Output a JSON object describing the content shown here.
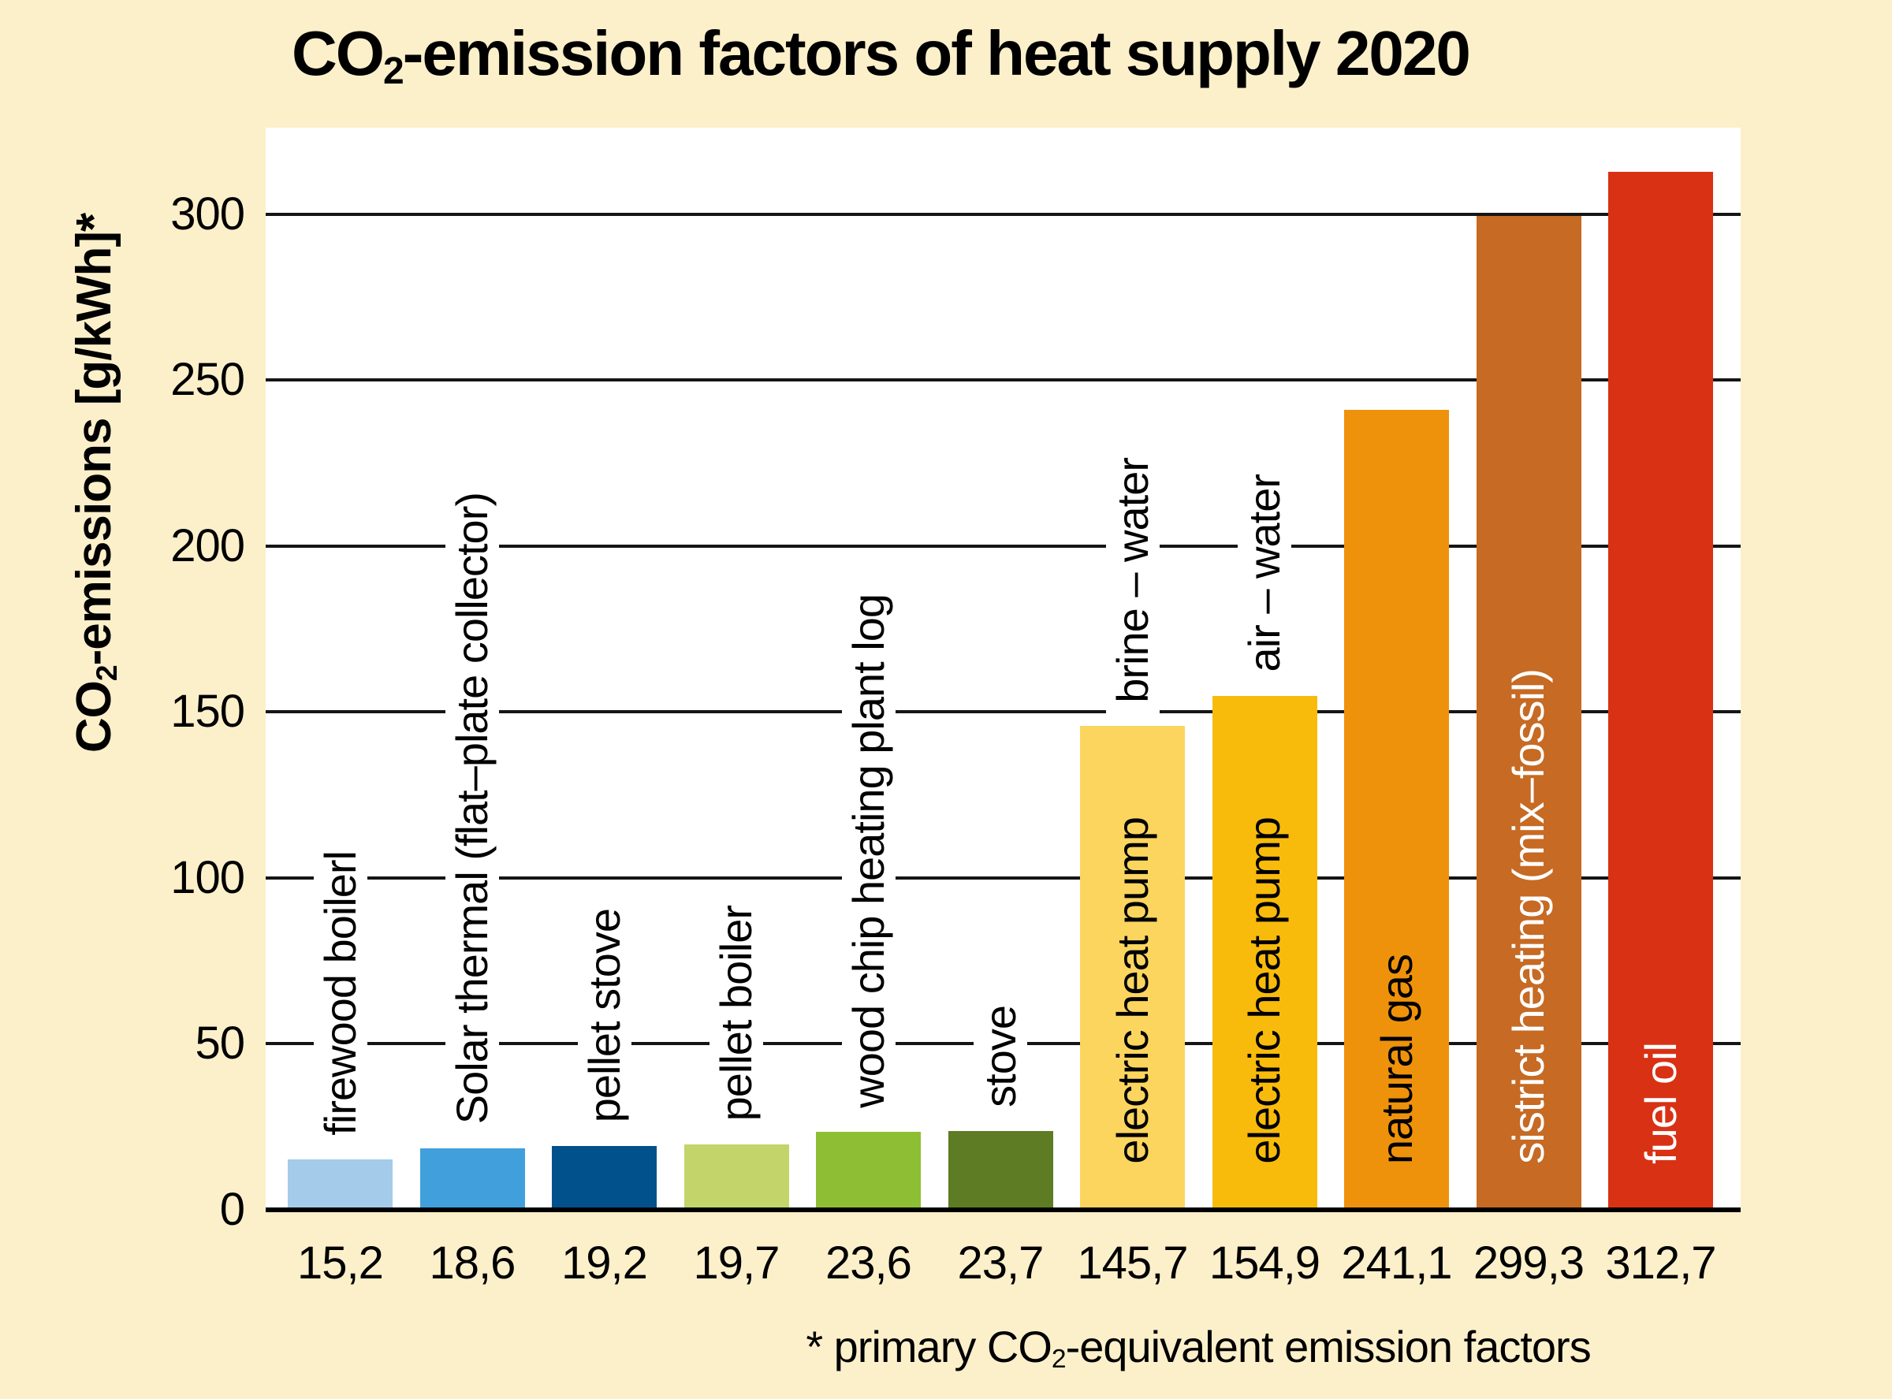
{
  "title": {
    "prefix": "CO",
    "subscript": "2",
    "suffix": "-emission factors of heat supply 2020"
  },
  "y_axis": {
    "title_prefix": "CO",
    "title_subscript": "2",
    "title_suffix": "-emissions [g/kWh]*",
    "ticks": [
      0,
      50,
      100,
      150,
      200,
      250,
      300
    ]
  },
  "footnote": {
    "prefix": "* primary CO",
    "subscript": "2",
    "suffix": "-equivalent emission factors"
  },
  "colors": {
    "background": "#FCF0CA",
    "plot_background": "#FFFFFF",
    "gridline": "#151515",
    "axis": "#000000"
  },
  "chart_data": {
    "type": "bar",
    "title": "CO2-emission factors of heat supply 2020",
    "xlabel": "",
    "ylabel": "CO2-emissions [g/kWh]*",
    "ylim": [
      0,
      326
    ],
    "yticks": [
      0,
      50,
      100,
      150,
      200,
      250,
      300
    ],
    "grid": "horizontal",
    "legend": "none",
    "categories": [
      "firewood boilerl",
      "Solar thermal (flat–plate collector)",
      "pellet stove",
      "pellet boiler",
      "wood chip heating plant log",
      "stove",
      "electric heat pump (brine – water)",
      "electric heat pump (air – water)",
      "natural gas",
      "sistrict heating (mix–fossil)",
      "fuel oil"
    ],
    "values": [
      15.2,
      18.6,
      19.2,
      19.7,
      23.6,
      23.7,
      145.7,
      154.9,
      241.1,
      299.3,
      312.7
    ],
    "value_labels": [
      "15,2",
      "18,6",
      "19,2",
      "19,7",
      "23,6",
      "23,7",
      "145,7",
      "154,9",
      "241,1",
      "299,3",
      "312,7"
    ],
    "bars": [
      {
        "label": "firewood boilerl",
        "sublabel": "",
        "value": 15.2,
        "value_label": "15,2",
        "color": "#A4CBEA",
        "label_placement": "above",
        "label_color": "#000000"
      },
      {
        "label": "Solar thermal (flat–plate collector)",
        "sublabel": "",
        "value": 18.6,
        "value_label": "18,6",
        "color": "#41A0DC",
        "label_placement": "above",
        "label_color": "#000000"
      },
      {
        "label": "pellet stove",
        "sublabel": "",
        "value": 19.2,
        "value_label": "19,2",
        "color": "#01518C",
        "label_placement": "above",
        "label_color": "#000000"
      },
      {
        "label": "pellet boiler",
        "sublabel": "",
        "value": 19.7,
        "value_label": "19,7",
        "color": "#C3D46B",
        "label_placement": "above",
        "label_color": "#000000"
      },
      {
        "label": "wood chip heating plant log",
        "sublabel": "",
        "value": 23.6,
        "value_label": "23,6",
        "color": "#8EBE33",
        "label_placement": "above",
        "label_color": "#000000"
      },
      {
        "label": "stove",
        "sublabel": "",
        "value": 23.7,
        "value_label": "23,7",
        "color": "#5E7C24",
        "label_placement": "above",
        "label_color": "#000000"
      },
      {
        "label": "electric heat pump",
        "sublabel": "brine – water",
        "value": 145.7,
        "value_label": "145,7",
        "color": "#FCD55F",
        "label_placement": "inside",
        "label_color": "#000000"
      },
      {
        "label": "electric heat pump",
        "sublabel": "air – water",
        "value": 154.9,
        "value_label": "154,9",
        "color": "#F8BB0B",
        "label_placement": "inside",
        "label_color": "#000000"
      },
      {
        "label": "natural gas",
        "sublabel": "",
        "value": 241.1,
        "value_label": "241,1",
        "color": "#EF920B",
        "label_placement": "inside",
        "label_color": "#000000"
      },
      {
        "label": "sistrict heating (mix–fossil)",
        "sublabel": "",
        "value": 299.3,
        "value_label": "299,3",
        "color": "#C66A24",
        "label_placement": "inside",
        "label_color": "#FFFFFF"
      },
      {
        "label": "fuel oil",
        "sublabel": "",
        "value": 312.7,
        "value_label": "312,7",
        "color": "#D93114",
        "label_placement": "inside",
        "label_color": "#FFFFFF"
      }
    ]
  }
}
